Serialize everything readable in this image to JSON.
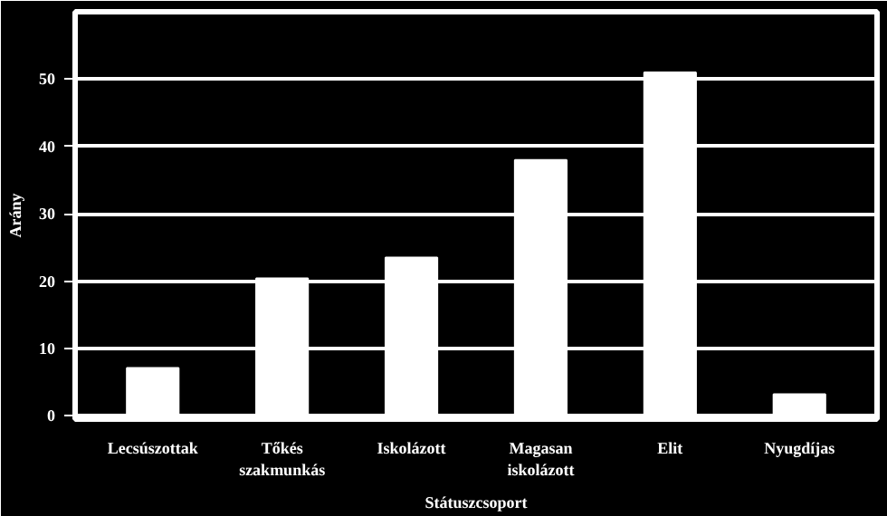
{
  "chart_data": {
    "type": "bar",
    "xlabel": "Státuszcsoport",
    "ylabel": "Arány",
    "categories": [
      "Lecsúszottak",
      "Tőkés\nszakmunkás",
      "Iskolázott",
      "Magasan\niskolázott",
      "Elit",
      "Nyugdíjas"
    ],
    "values": [
      7.1,
      20.4,
      23.5,
      38,
      51,
      3.2
    ],
    "color": "#ffffff",
    "ylim": [
      -0.5,
      60
    ],
    "yticks": [
      0,
      10,
      20,
      30,
      40,
      50
    ],
    "grid": "y"
  }
}
